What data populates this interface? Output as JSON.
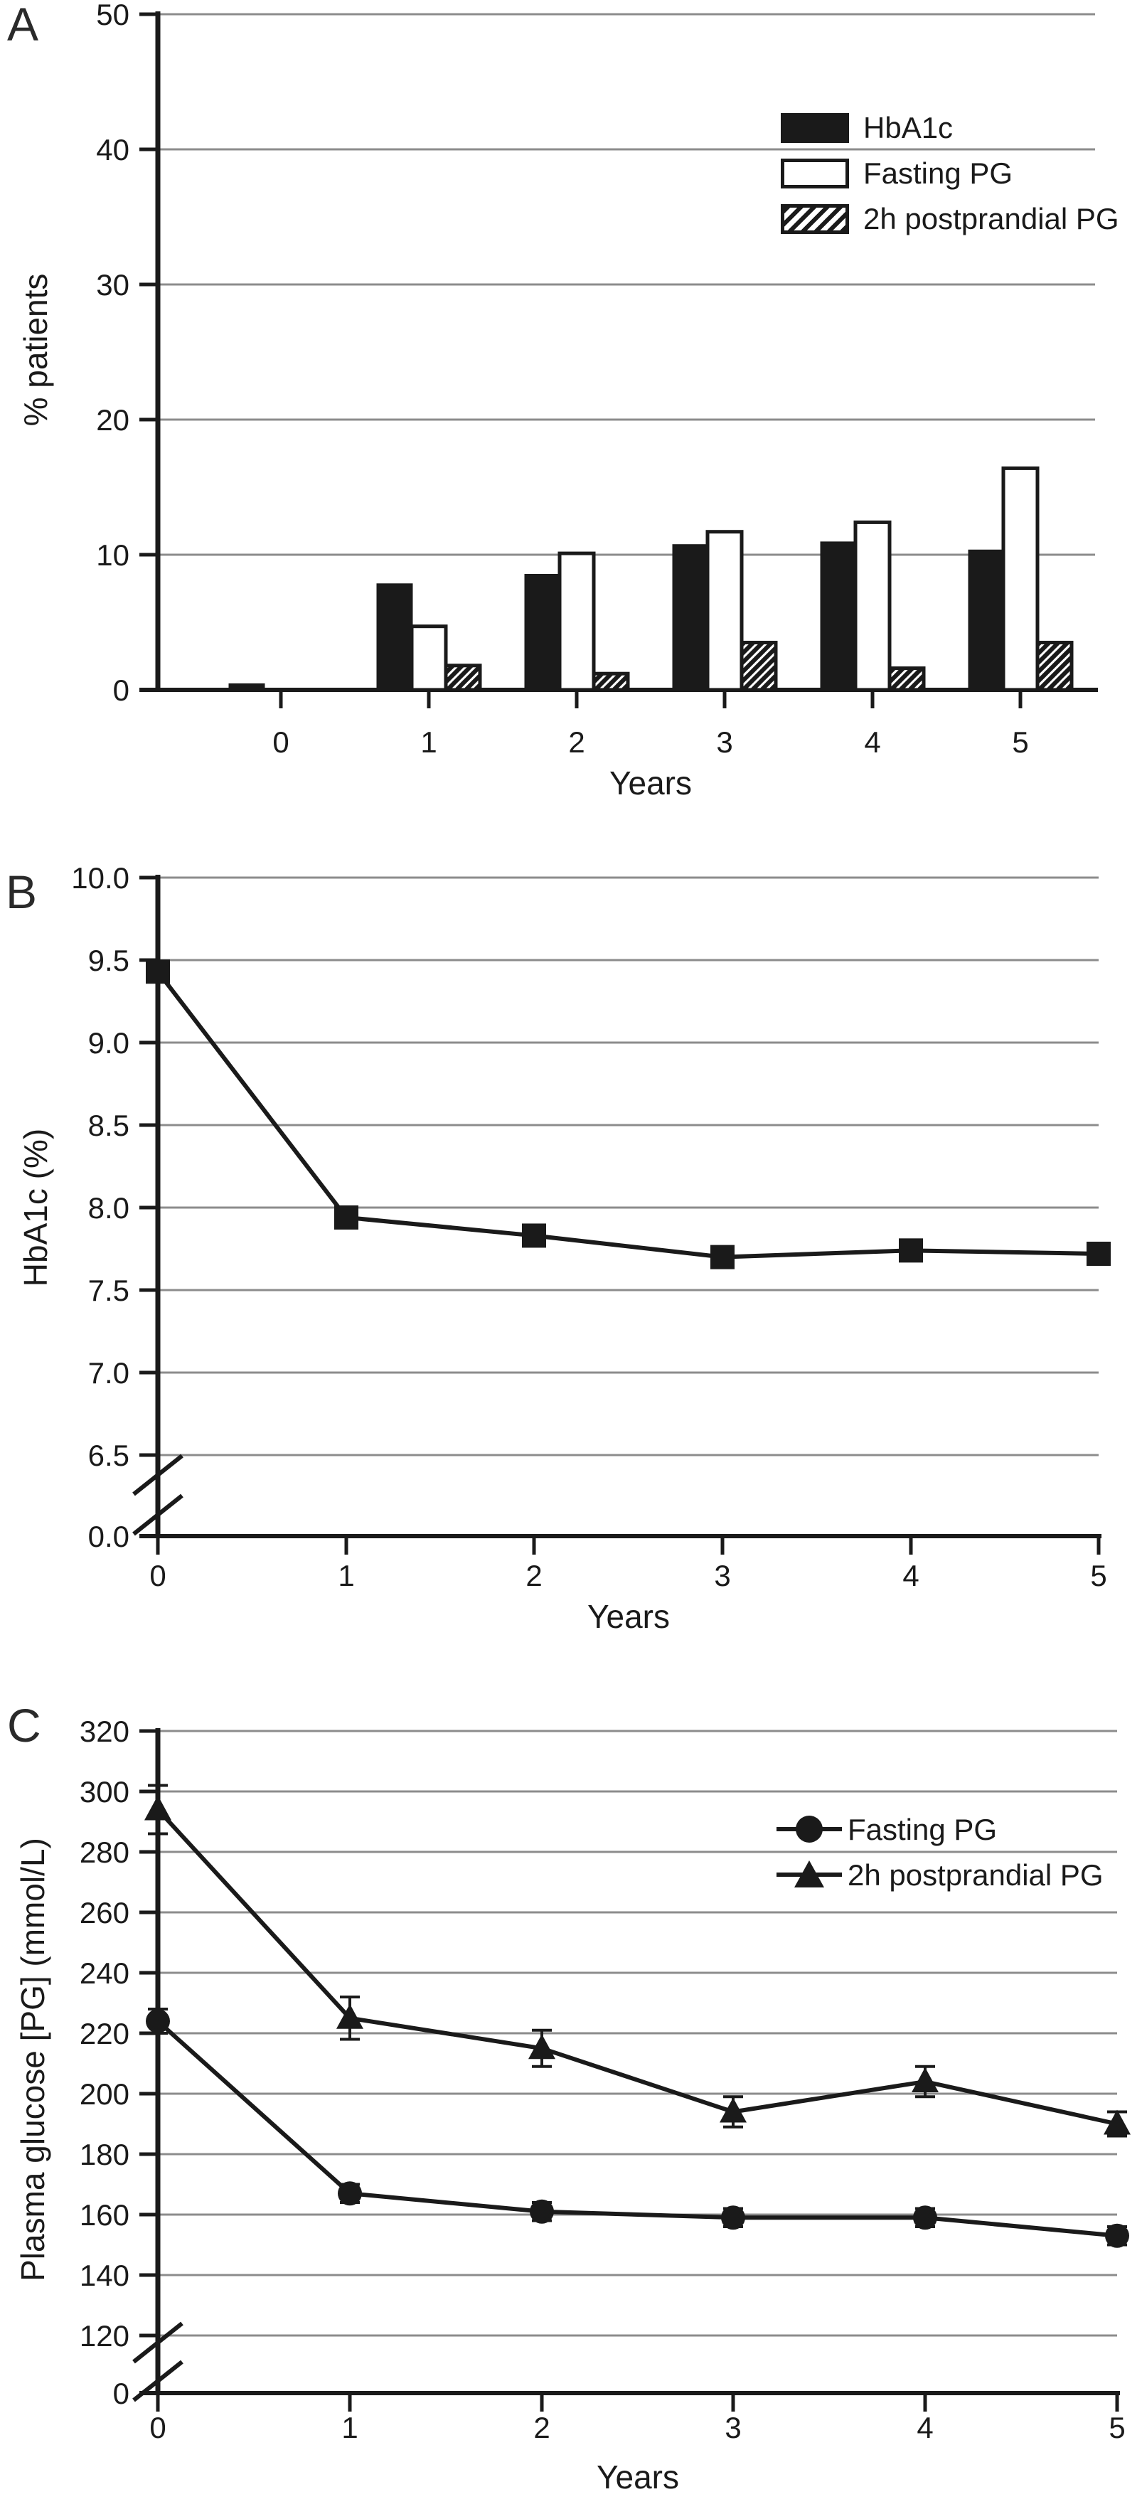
{
  "colors": {
    "ink": "#1a1a1a",
    "grid": "#8c8c8c",
    "background": "#ffffff"
  },
  "chart_data": [
    {
      "panel_label": "A",
      "type": "bar",
      "categories": [
        "0",
        "1",
        "2",
        "3",
        "4",
        "5"
      ],
      "series": [
        {
          "name": "HbA1c",
          "fill": "solid",
          "values": [
            0.4,
            7.8,
            8.5,
            10.7,
            10.9,
            10.3
          ]
        },
        {
          "name": "Fasting PG",
          "fill": "open",
          "values": [
            0,
            4.7,
            10.1,
            11.7,
            12.4,
            16.4
          ]
        },
        {
          "name": "2h postprandial PG",
          "fill": "hatched",
          "values": [
            0,
            1.8,
            1.2,
            3.5,
            1.6,
            3.5
          ]
        }
      ],
      "xlabel": "Years",
      "ylabel": "% patients",
      "ylim": [
        0,
        50
      ],
      "yticks": [
        0,
        10,
        20,
        30,
        40,
        50
      ],
      "grid": true,
      "legend_position": "top-right"
    },
    {
      "panel_label": "B",
      "type": "line",
      "x": [
        "0",
        "1",
        "2",
        "3",
        "4",
        "5"
      ],
      "series": [
        {
          "name": "HbA1c",
          "marker": "square",
          "values": [
            9.43,
            7.94,
            7.83,
            7.7,
            7.74,
            7.72
          ]
        }
      ],
      "xlabel": "Years",
      "ylabel": "HbA1c (%)",
      "yticks": [
        10.0,
        9.5,
        9.0,
        8.5,
        8.0,
        7.5,
        7.0,
        6.5
      ],
      "ytick_format": 1,
      "baseline_label": "0.0",
      "axis_break": true,
      "grid": true,
      "legend_position": null
    },
    {
      "panel_label": "C",
      "type": "line",
      "x": [
        "0",
        "1",
        "2",
        "3",
        "4",
        "5"
      ],
      "series": [
        {
          "name": "Fasting PG",
          "marker": "circle",
          "values": [
            224,
            167,
            161,
            159,
            159,
            153
          ],
          "errors": [
            4,
            3,
            3,
            3,
            3,
            3
          ]
        },
        {
          "name": "2h postprandial PG",
          "marker": "triangle",
          "values": [
            294,
            225,
            215,
            194,
            204,
            190
          ],
          "errors": [
            8,
            7,
            6,
            5,
            5,
            4
          ]
        }
      ],
      "xlabel": "Years",
      "ylabel": "Plasma glucose [PG] (mmol/L)",
      "yticks": [
        320,
        300,
        280,
        260,
        240,
        220,
        200,
        180,
        160,
        140,
        120
      ],
      "ytick_format": 0,
      "baseline_label": "0",
      "axis_break": true,
      "grid": true,
      "legend_position": "top-right"
    }
  ]
}
